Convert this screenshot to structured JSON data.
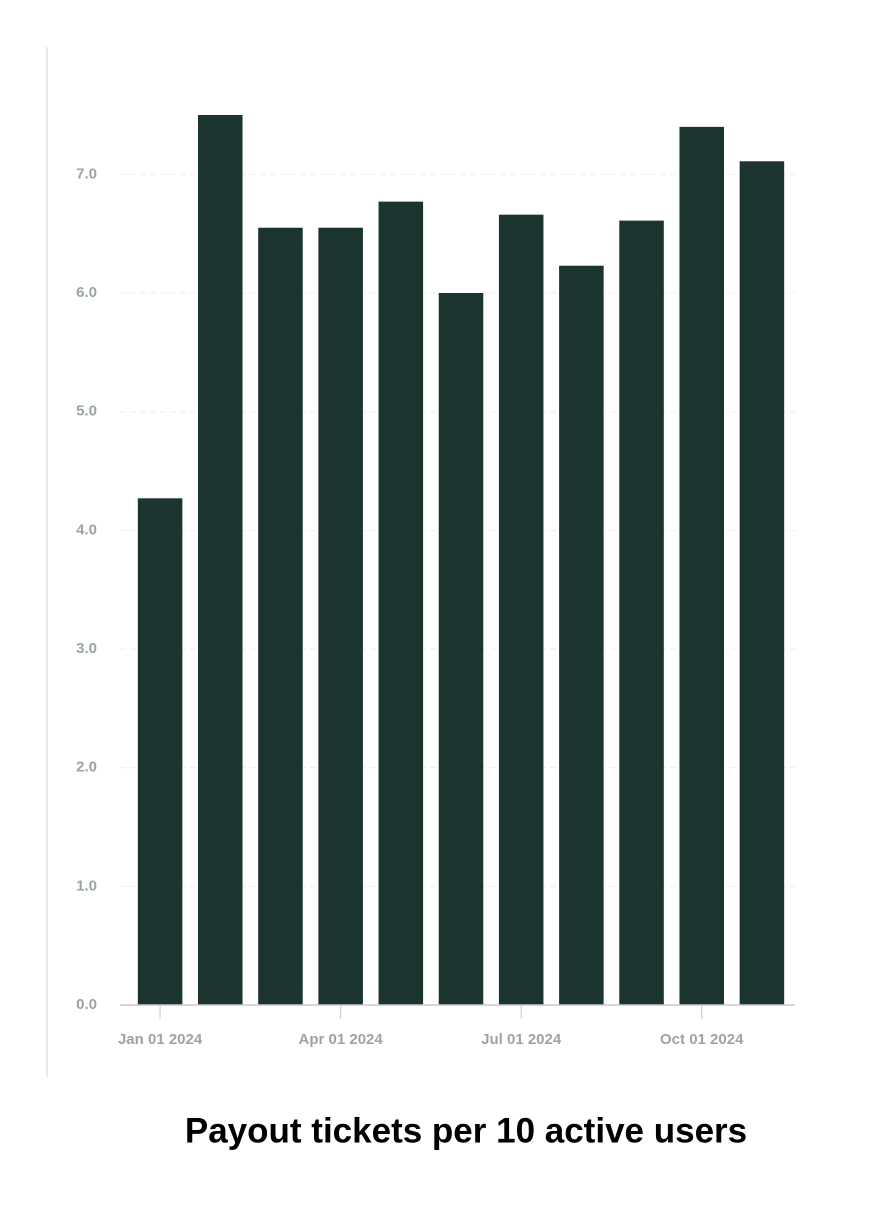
{
  "chart_data": {
    "type": "bar",
    "title": "Payout tickets per 10 active users",
    "categories": [
      "Jan 01 2024",
      null,
      null,
      "Apr 01 2024",
      null,
      null,
      "Jul 01 2024",
      null,
      null,
      "Oct 01 2024",
      null
    ],
    "values": [
      4.27,
      7.5,
      6.55,
      6.55,
      6.77,
      6.0,
      6.66,
      6.23,
      6.61,
      7.4,
      7.11
    ],
    "color": "#1b3430",
    "ylim": [
      0,
      7.5
    ],
    "yticks": [
      {
        "value": 0,
        "label": "0.0"
      },
      {
        "value": 1,
        "label": "1.0"
      },
      {
        "value": 2,
        "label": "2.0"
      },
      {
        "value": 3,
        "label": "3.0"
      },
      {
        "value": 4,
        "label": "4.0"
      },
      {
        "value": 5,
        "label": "5.0"
      },
      {
        "value": 6,
        "label": "6.0"
      },
      {
        "value": 7,
        "label": "7.0"
      }
    ],
    "grid": true
  }
}
